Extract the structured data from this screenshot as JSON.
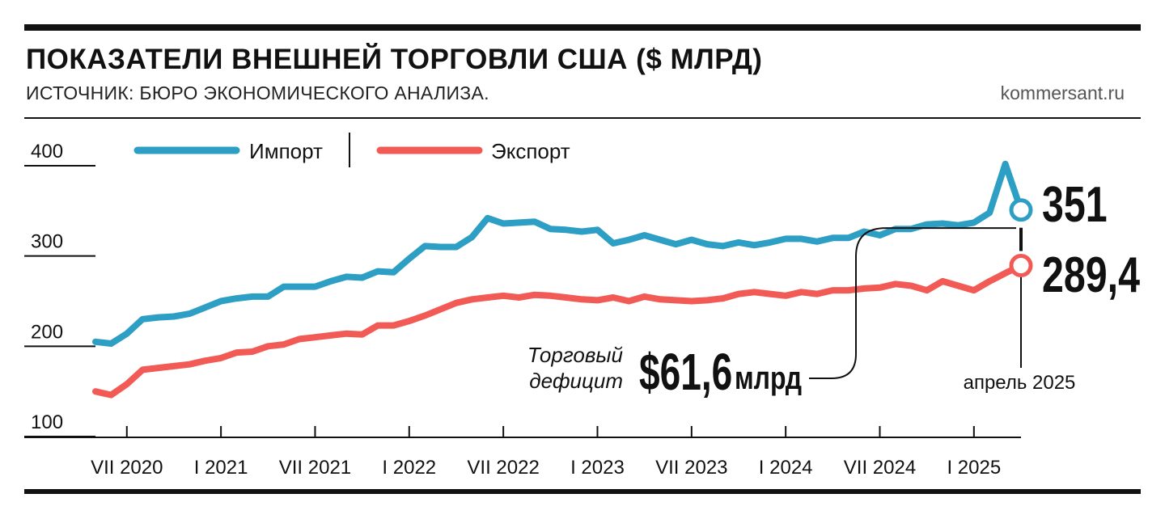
{
  "header": {
    "title": "ПОКАЗАТЕЛИ ВНЕШНЕЙ ТОРГОВЛИ США ($ МЛРД)",
    "subtitle": "ИСТОЧНИК: БЮРО ЭКОНОМИЧЕСКОГО АНАЛИЗА.",
    "brand": "kommersant.ru"
  },
  "colors": {
    "import": "#2e9fc4",
    "export": "#f25a55",
    "text": "#111111",
    "axis": "#111111"
  },
  "annotations": {
    "import_last": "351",
    "export_last": "289,4",
    "deficit_label_line1": "Торговый",
    "deficit_label_line2": "дефицит",
    "deficit_value": "$61,6",
    "deficit_unit": "млрд",
    "date_label": "апрель 2025"
  },
  "chart_data": {
    "type": "line",
    "title": "ПОКАЗАТЕЛИ ВНЕШНЕЙ ТОРГОВЛИ США ($ МЛРД)",
    "xlabel": "",
    "ylabel": "",
    "ylim": [
      100,
      400
    ],
    "yticks": [
      100,
      200,
      300,
      400
    ],
    "ytick_labels": [
      "100",
      "200",
      "300",
      "400"
    ],
    "x_tick_labels": [
      "VII 2020",
      "I 2021",
      "VII 2021",
      "I 2022",
      "VII 2022",
      "I 2023",
      "VII 2023",
      "I 2024",
      "VII 2024",
      "I 2025"
    ],
    "x_tick_dates": [
      "2020-07",
      "2021-01",
      "2021-07",
      "2022-01",
      "2022-07",
      "2023-01",
      "2023-07",
      "2024-01",
      "2024-07",
      "2025-01"
    ],
    "legend_position": "top-left",
    "grid": false,
    "x": [
      "2020-05",
      "2020-06",
      "2020-07",
      "2020-08",
      "2020-09",
      "2020-10",
      "2020-11",
      "2020-12",
      "2021-01",
      "2021-02",
      "2021-03",
      "2021-04",
      "2021-05",
      "2021-06",
      "2021-07",
      "2021-08",
      "2021-09",
      "2021-10",
      "2021-11",
      "2021-12",
      "2022-01",
      "2022-02",
      "2022-03",
      "2022-04",
      "2022-05",
      "2022-06",
      "2022-07",
      "2022-08",
      "2022-09",
      "2022-10",
      "2022-11",
      "2022-12",
      "2023-01",
      "2023-02",
      "2023-03",
      "2023-04",
      "2023-05",
      "2023-06",
      "2023-07",
      "2023-08",
      "2023-09",
      "2023-10",
      "2023-11",
      "2023-12",
      "2024-01",
      "2024-02",
      "2024-03",
      "2024-04",
      "2024-05",
      "2024-06",
      "2024-07",
      "2024-08",
      "2024-09",
      "2024-10",
      "2024-11",
      "2024-12",
      "2025-01",
      "2025-02",
      "2025-03",
      "2025-04"
    ],
    "series": [
      {
        "name": "Импорт",
        "color": "#2e9fc4",
        "values": [
          205,
          203,
          214,
          230,
          232,
          233,
          236,
          243,
          250,
          253,
          255,
          255,
          266,
          266,
          266,
          272,
          277,
          276,
          283,
          282,
          297,
          311,
          310,
          310,
          321,
          342,
          336,
          337,
          338,
          330,
          329,
          327,
          329,
          314,
          318,
          323,
          318,
          313,
          318,
          313,
          311,
          315,
          312,
          315,
          319,
          319,
          316,
          320,
          320,
          327,
          323,
          330,
          330,
          335,
          336,
          334,
          337,
          348,
          402,
          351
        ]
      },
      {
        "name": "Экспорт",
        "color": "#f25a55",
        "values": [
          150,
          146,
          158,
          174,
          176,
          178,
          180,
          184,
          187,
          193,
          194,
          200,
          202,
          208,
          210,
          212,
          214,
          213,
          223,
          223,
          228,
          234,
          241,
          248,
          252,
          254,
          256,
          254,
          257,
          256,
          254,
          252,
          251,
          254,
          250,
          255,
          252,
          251,
          250,
          251,
          253,
          258,
          260,
          258,
          256,
          260,
          258,
          262,
          262,
          264,
          265,
          269,
          267,
          262,
          272,
          267,
          262,
          272,
          281,
          289.4
        ]
      }
    ]
  }
}
